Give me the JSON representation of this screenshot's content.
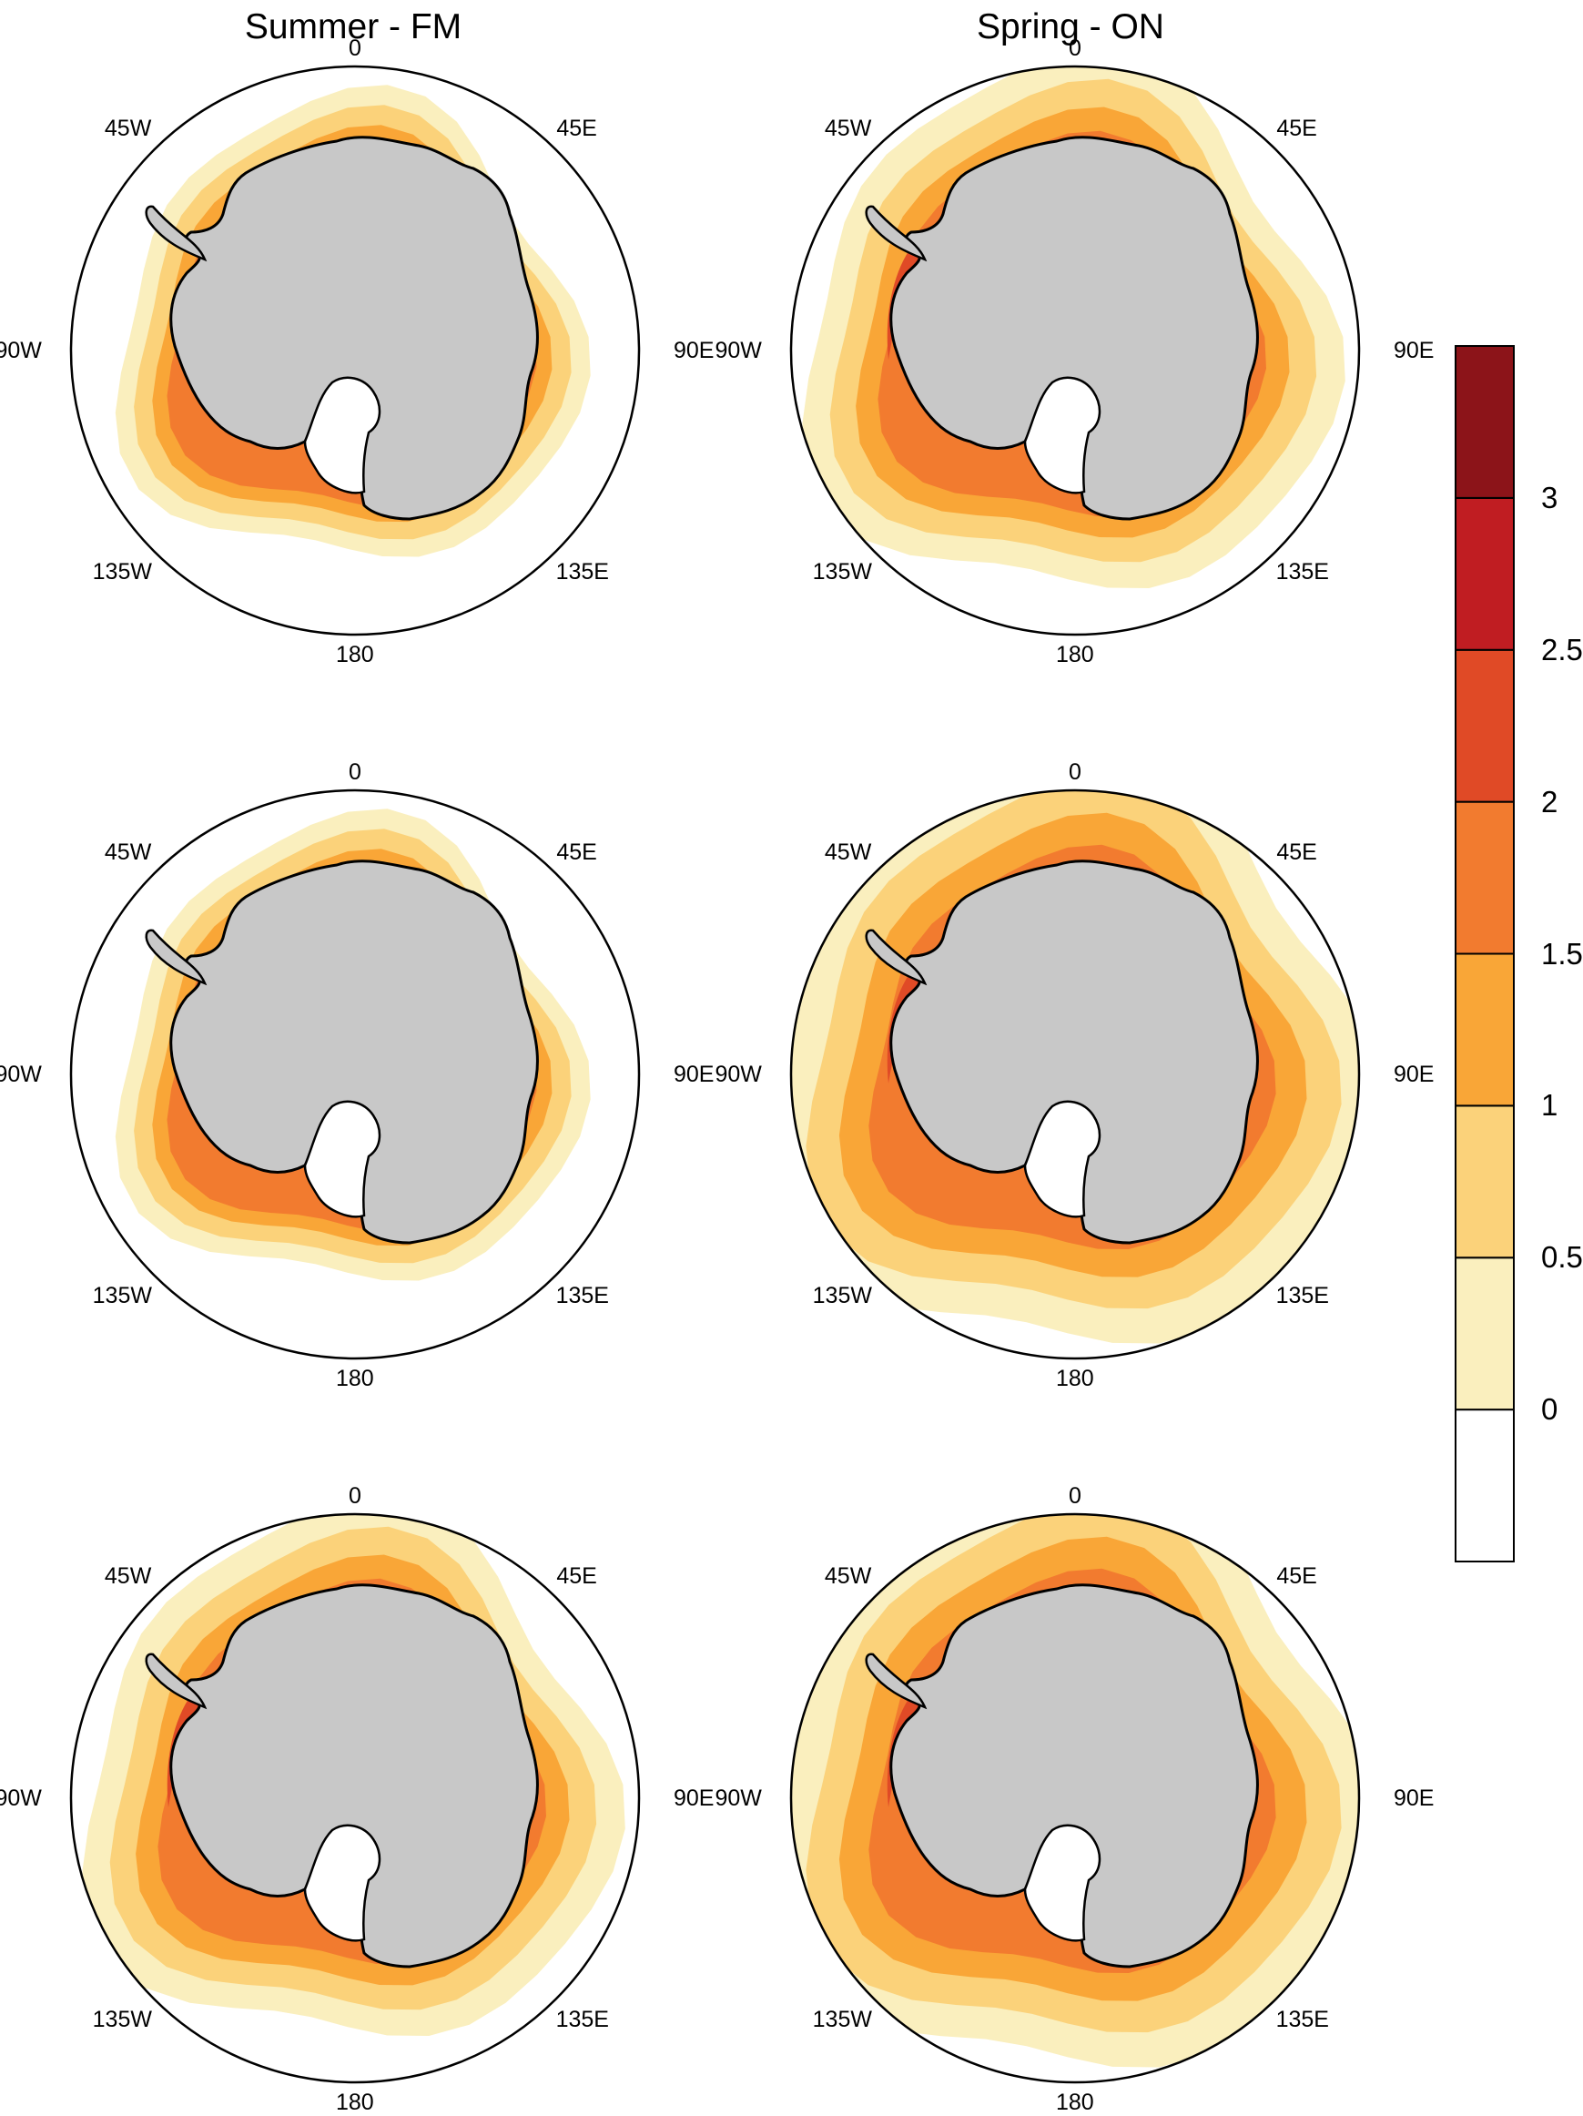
{
  "titles": {
    "left": "Summer - FM",
    "right": "Spring - ON"
  },
  "compass": {
    "n": "0",
    "ne": "45E",
    "nw": "45W",
    "e": "90E",
    "w": "90W",
    "se": "135E",
    "sw": "135W",
    "s": "180"
  },
  "colorbar": {
    "levels": [
      {
        "label": "0",
        "color": "#ffffff"
      },
      {
        "label": "0.5",
        "color": "#faefbe"
      },
      {
        "label": "1",
        "color": "#fbd27a"
      },
      {
        "label": "1.5",
        "color": "#f9a637"
      },
      {
        "label": "2",
        "color": "#f27b2f"
      },
      {
        "label": "2.5",
        "color": "#e04a26"
      },
      {
        "label": "3",
        "color": "#c01d22"
      },
      {
        "label": "",
        "color": "#8c1419"
      }
    ]
  },
  "colors": {
    "land": "#c8c8c8",
    "coast": "#000000"
  },
  "panels": [
    {
      "id": "summer-1",
      "intensity": 1
    },
    {
      "id": "spring-1",
      "intensity": 2
    },
    {
      "id": "summer-2",
      "intensity": 1
    },
    {
      "id": "spring-2",
      "intensity": 3
    },
    {
      "id": "summer-3",
      "intensity": 2
    },
    {
      "id": "spring-3",
      "intensity": 3
    }
  ]
}
